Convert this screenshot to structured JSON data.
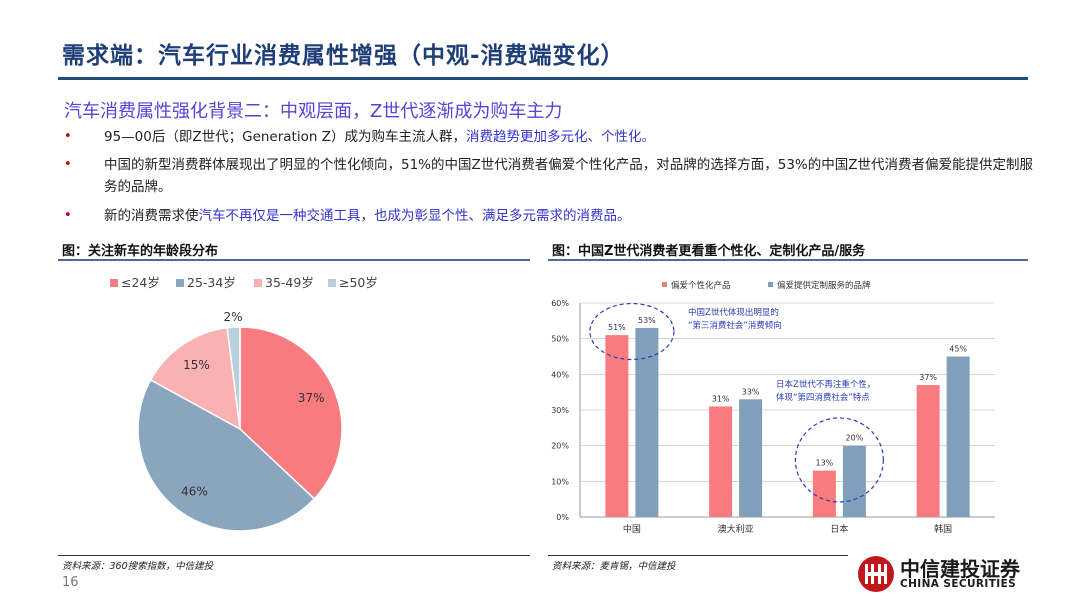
{
  "title": "需求端：汽车行业消费属性增强（中观-消费端变化）",
  "subtitle": "汽车消费属性强化背景二：中观层面，Z世代逐渐成为购车主力",
  "bullets": [
    {
      "plain": "95—00后（即Z世代；Generation Z）成为购车主流人群，",
      "highlight": "消费趋势更加多元化、个性化。"
    },
    {
      "plain": "中国的新型消费群体展现出了明显的个性化倾向，51%的中国Z世代消费者偏爱个性化产品，对品牌的选择方面，53%的中国Z世代消费者偏爱能提供定制服务的品牌。",
      "highlight": ""
    },
    {
      "plain": "新的消费需求使",
      "highlight": "汽车不再仅是一种交通工具，也成为彰显个性、满足多元需求的消费品。"
    }
  ],
  "bullet_symbol": "•",
  "left_figure": {
    "heading": "图：关注新车的年龄段分布",
    "source": "资料来源：360搜索指数，中信建投",
    "chart_data": {
      "type": "pie",
      "categories": [
        "≤24岁",
        "25-34岁",
        "35-49岁",
        "≥50岁"
      ],
      "values": [
        37,
        46,
        15,
        2
      ],
      "labels": [
        "37%",
        "46%",
        "15%",
        "2%"
      ],
      "colors": [
        "#f77b7f",
        "#8aa6bf",
        "#f9b1b1",
        "#b9cfdd"
      ],
      "legend_position": "top"
    }
  },
  "right_figure": {
    "heading": "图：中国Z世代消费者更看重个性化、定制化产品/服务",
    "source": "资料来源：麦肯锡，中信建投",
    "chart_data": {
      "type": "bar",
      "categories": [
        "中国",
        "澳大利亚",
        "日本",
        "韩国"
      ],
      "series": [
        {
          "name": "偏爱个性化产品",
          "values": [
            51,
            31,
            13,
            37
          ],
          "labels": [
            "51%",
            "31%",
            "13%",
            "37%"
          ],
          "color": "#f77b7f"
        },
        {
          "name": "偏爱提供定制服务的品牌",
          "values": [
            53,
            33,
            20,
            45
          ],
          "labels": [
            "53%",
            "33%",
            "20%",
            "45%"
          ],
          "color": "#7f9fbb"
        }
      ],
      "ylim": [
        0,
        60
      ],
      "yticks": [
        "0%",
        "10%",
        "20%",
        "30%",
        "40%",
        "50%",
        "60%"
      ],
      "grid": true,
      "legend_position": "top",
      "annotations": [
        {
          "lines": [
            "中国Z世代体现出明显的",
            "“第三消费社会”消费倾向"
          ]
        },
        {
          "lines": [
            "日本Z世代不再注重个性，",
            "体现“第四消费社会”特点"
          ]
        }
      ]
    }
  },
  "page_number": "16",
  "logo": {
    "cn": "中信建投证券",
    "en": "CHINA SECURITIES",
    "brand_color": "#c0171c"
  }
}
